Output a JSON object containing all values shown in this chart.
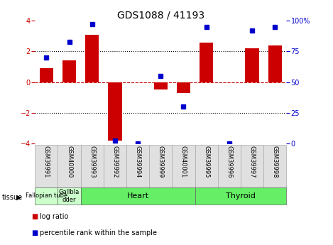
{
  "title": "GDS1088 / 41193",
  "samples": [
    "GSM39991",
    "GSM40000",
    "GSM39993",
    "GSM39992",
    "GSM39994",
    "GSM39999",
    "GSM40001",
    "GSM39995",
    "GSM39996",
    "GSM39997",
    "GSM39998"
  ],
  "log_ratio": [
    0.9,
    1.4,
    3.1,
    -3.8,
    0.0,
    -0.5,
    -0.7,
    2.6,
    0.0,
    2.2,
    2.4
  ],
  "percentile_rank": [
    70,
    83,
    97,
    2,
    0,
    55,
    30,
    95,
    0,
    92,
    95
  ],
  "ylim": [
    -4,
    4
  ],
  "yticks_left": [
    -4,
    -2,
    0,
    2,
    4
  ],
  "bar_color": "#cc0000",
  "dot_color": "#0000cc",
  "bar_width": 0.6,
  "hline_color": "#cc0000",
  "dotline_color": "#000000",
  "tissue_groups": [
    {
      "label": "Fallopian tube",
      "start": 0,
      "end": 1,
      "color": "#ccffcc",
      "fontsize": 6
    },
    {
      "label": "Gallbla\ndder",
      "start": 1,
      "end": 2,
      "color": "#ccffcc",
      "fontsize": 6
    },
    {
      "label": "Heart",
      "start": 2,
      "end": 7,
      "color": "#66ee66",
      "fontsize": 8
    },
    {
      "label": "Thyroid",
      "start": 7,
      "end": 11,
      "color": "#66ee66",
      "fontsize": 8
    }
  ],
  "legend_items": [
    {
      "color": "#cc0000",
      "label": "log ratio"
    },
    {
      "color": "#0000cc",
      "label": "percentile rank within the sample"
    }
  ],
  "ylabel_left_color": "#cc0000",
  "ylabel_right_color": "#0000cc",
  "right_labels": [
    "0",
    "25",
    "50",
    "75",
    "100%"
  ]
}
